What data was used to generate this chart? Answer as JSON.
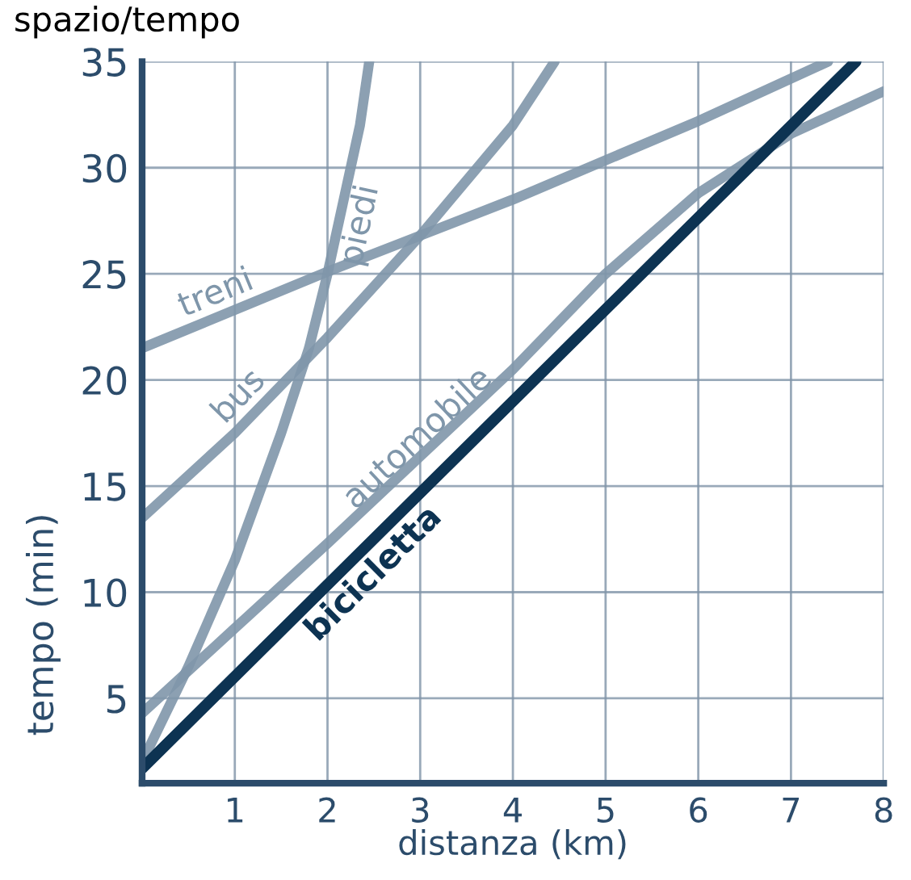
{
  "chart_data": {
    "type": "line",
    "title": "spazio/tempo",
    "xlabel": "distanza (km)",
    "ylabel": "tempo (min)",
    "series": [
      {
        "name": "piedi",
        "color": "#7f96aa",
        "x": [
          0,
          0.5,
          1,
          1.5,
          1.8,
          2,
          2.2,
          2.35,
          2.45
        ],
        "values": [
          2,
          6.5,
          11.5,
          17.5,
          21.5,
          25,
          29,
          32,
          35
        ]
      },
      {
        "name": "bus",
        "color": "#7f96aa",
        "x": [
          0,
          1,
          2,
          3,
          4,
          4.45
        ],
        "values": [
          13.5,
          17.5,
          22,
          26.8,
          32,
          35
        ]
      },
      {
        "name": "treni",
        "color": "#7f96aa",
        "x": [
          0,
          2,
          4,
          6,
          7.4
        ],
        "values": [
          21.5,
          25.1,
          28.5,
          32.2,
          35
        ]
      },
      {
        "name": "automobile",
        "color": "#7f96aa",
        "x": [
          0,
          1,
          2,
          3,
          4,
          5,
          6,
          7,
          8
        ],
        "values": [
          4.3,
          8.3,
          12.3,
          16.4,
          20.5,
          25,
          28.8,
          31.6,
          33.6
        ]
      },
      {
        "name": "bicicletta",
        "color": "#0d3352",
        "x": [
          0,
          7.7
        ],
        "values": [
          1.7,
          35
        ]
      }
    ],
    "xlim": [
      0,
      8
    ],
    "ylim": [
      1,
      35
    ],
    "xticks": [
      1,
      2,
      3,
      4,
      5,
      6,
      7,
      8
    ],
    "yticks": [
      5,
      10,
      15,
      20,
      25,
      30,
      35
    ],
    "grid": true,
    "legend": false,
    "marker": "none",
    "line_style": "solid"
  }
}
